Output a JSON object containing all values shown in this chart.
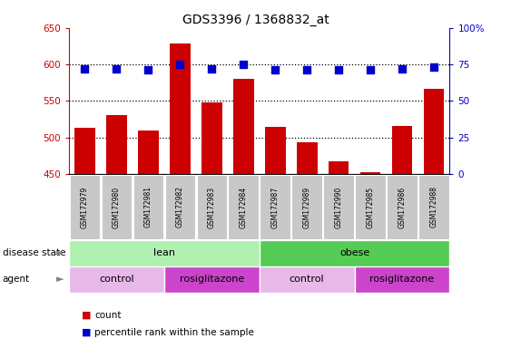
{
  "title": "GDS3396 / 1368832_at",
  "samples": [
    "GSM172979",
    "GSM172980",
    "GSM172981",
    "GSM172982",
    "GSM172983",
    "GSM172984",
    "GSM172987",
    "GSM172989",
    "GSM172990",
    "GSM172985",
    "GSM172986",
    "GSM172988"
  ],
  "bar_values": [
    513,
    530,
    510,
    628,
    548,
    580,
    515,
    493,
    467,
    453,
    516,
    566
  ],
  "dot_values": [
    72,
    72,
    71,
    75,
    72,
    75,
    71,
    71,
    71,
    71,
    72,
    73
  ],
  "bar_color": "#cc0000",
  "dot_color": "#0000cc",
  "ymin": 450,
  "ymax": 650,
  "yticks": [
    450,
    500,
    550,
    600,
    650
  ],
  "y2min": 0,
  "y2max": 100,
  "y2ticks": [
    0,
    25,
    50,
    75,
    100
  ],
  "y2ticklabels": [
    "0",
    "25",
    "50",
    "75",
    "100%"
  ],
  "gridlines": [
    500,
    550,
    600
  ],
  "disease_state_labels": [
    "lean",
    "obese"
  ],
  "disease_state_ranges": [
    [
      0,
      6
    ],
    [
      6,
      12
    ]
  ],
  "disease_lean_color": "#b0f0b0",
  "disease_obese_color": "#55cc55",
  "agent_labels": [
    "control",
    "rosiglitazone",
    "control",
    "rosiglitazone"
  ],
  "agent_ranges": [
    [
      0,
      3
    ],
    [
      3,
      6
    ],
    [
      6,
      9
    ],
    [
      9,
      12
    ]
  ],
  "agent_control_color": "#e8b8e8",
  "agent_rosi_color": "#cc44cc",
  "tick_label_bg": "#c8c8c8",
  "legend_count_color": "#cc0000",
  "legend_dot_color": "#0000cc",
  "bg_color": "#ffffff"
}
